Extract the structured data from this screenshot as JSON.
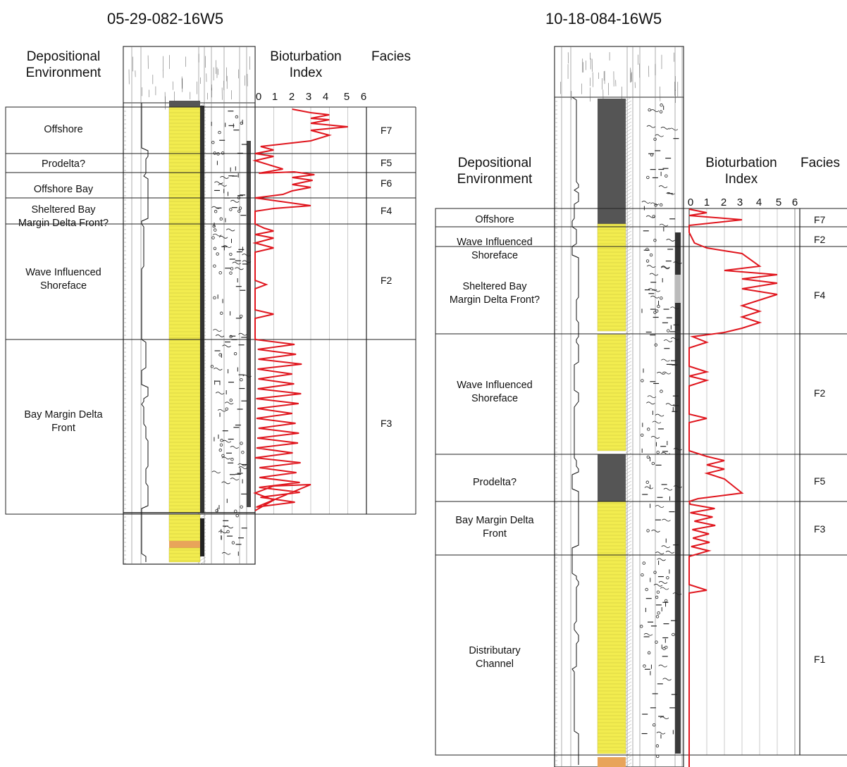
{
  "panels": [
    {
      "title": "05-29-082-16W5",
      "headers": {
        "environment": "Depositional\nEnvironment",
        "bioturbation": "Bioturbation\nIndex",
        "facies": "Facies"
      },
      "bi_ticks": [
        "0",
        "1",
        "2",
        "3",
        "4",
        "5",
        "6"
      ],
      "intervals": [
        {
          "environment": "Offshore",
          "facies": "F7"
        },
        {
          "environment": "Prodelta?",
          "facies": "F5"
        },
        {
          "environment": "Offshore Bay",
          "facies": "F6"
        },
        {
          "environment": "Sheltered Bay\nMargin Delta Front?",
          "facies": "F4"
        },
        {
          "environment": "Wave Influenced\nShoreface",
          "facies": "F2"
        },
        {
          "environment": "Bay Margin Delta\nFront",
          "facies": "F3"
        }
      ]
    },
    {
      "title": "10-18-084-16W5",
      "headers": {
        "environment": "Depositional\nEnvironment",
        "bioturbation": "Bioturbation\nIndex",
        "facies": "Facies"
      },
      "bi_ticks": [
        "0",
        "1",
        "2",
        "3",
        "4",
        "5",
        "6"
      ],
      "intervals": [
        {
          "environment": "Offshore",
          "facies": "F7"
        },
        {
          "environment": "Wave Influenced\nShoreface",
          "facies": "F2"
        },
        {
          "environment": "Sheltered Bay\nMargin Delta Front?",
          "facies": "F4"
        },
        {
          "environment": "Wave Influenced\nShoreface",
          "facies": "F2"
        },
        {
          "environment": "Prodelta?",
          "facies": "F5"
        },
        {
          "environment": "Bay Margin Delta\nFront",
          "facies": "F3"
        },
        {
          "environment": "Distributary\nChannel",
          "facies": "F1"
        }
      ]
    }
  ],
  "colors": {
    "bioturbation_curve": "#e0161e",
    "sandstone": "#f2ec4f",
    "mudstone": "#555555",
    "grid": "#999999"
  }
}
